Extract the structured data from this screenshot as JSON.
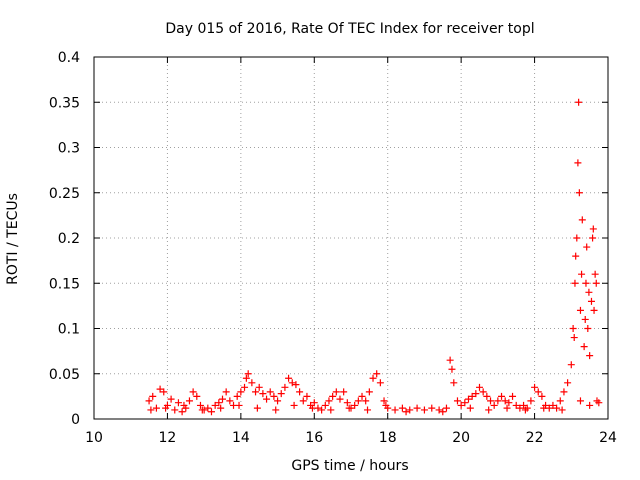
{
  "chart_data": {
    "type": "scatter",
    "title": "Day 015 of 2016, Rate Of TEC Index for receiver topl",
    "xlabel": "GPS time / hours",
    "ylabel": "ROTI / TECUs",
    "xlim": [
      10,
      24
    ],
    "ylim": [
      0,
      0.4
    ],
    "x_ticks": [
      10,
      12,
      14,
      16,
      18,
      20,
      22,
      24
    ],
    "x_tick_labels": [
      "10",
      "12",
      "14",
      "16",
      "18",
      "20",
      "22",
      "24"
    ],
    "y_ticks": [
      0,
      0.05,
      0.1,
      0.15,
      0.2,
      0.25,
      0.3,
      0.35,
      0.4
    ],
    "y_tick_labels": [
      "0",
      "0.05",
      "0.1",
      "0.15",
      "0.2",
      "0.25",
      "0.3",
      "0.35",
      "0.4"
    ],
    "grid": true,
    "marker": "+",
    "color": "#ff0000",
    "series": [
      {
        "name": "ROTI",
        "points": [
          [
            11.5,
            0.02
          ],
          [
            11.6,
            0.025
          ],
          [
            11.7,
            0.012
          ],
          [
            11.8,
            0.033
          ],
          [
            11.9,
            0.03
          ],
          [
            12.0,
            0.015
          ],
          [
            12.1,
            0.022
          ],
          [
            12.2,
            0.01
          ],
          [
            12.3,
            0.018
          ],
          [
            12.4,
            0.008
          ],
          [
            12.5,
            0.012
          ],
          [
            12.6,
            0.02
          ],
          [
            12.7,
            0.03
          ],
          [
            12.8,
            0.025
          ],
          [
            12.9,
            0.015
          ],
          [
            13.0,
            0.01
          ],
          [
            13.1,
            0.012
          ],
          [
            13.2,
            0.008
          ],
          [
            13.3,
            0.015
          ],
          [
            13.4,
            0.018
          ],
          [
            13.5,
            0.022
          ],
          [
            13.6,
            0.03
          ],
          [
            13.7,
            0.02
          ],
          [
            13.8,
            0.015
          ],
          [
            13.9,
            0.025
          ],
          [
            14.0,
            0.03
          ],
          [
            14.1,
            0.035
          ],
          [
            14.15,
            0.045
          ],
          [
            14.2,
            0.05
          ],
          [
            14.3,
            0.04
          ],
          [
            14.4,
            0.03
          ],
          [
            14.5,
            0.035
          ],
          [
            14.6,
            0.028
          ],
          [
            14.7,
            0.022
          ],
          [
            14.8,
            0.03
          ],
          [
            14.9,
            0.025
          ],
          [
            15.0,
            0.02
          ],
          [
            15.1,
            0.028
          ],
          [
            15.2,
            0.035
          ],
          [
            15.3,
            0.045
          ],
          [
            15.4,
            0.04
          ],
          [
            15.5,
            0.038
          ],
          [
            15.6,
            0.03
          ],
          [
            15.7,
            0.02
          ],
          [
            15.8,
            0.025
          ],
          [
            15.9,
            0.015
          ],
          [
            16.0,
            0.018
          ],
          [
            16.1,
            0.012
          ],
          [
            16.2,
            0.01
          ],
          [
            16.3,
            0.015
          ],
          [
            16.4,
            0.02
          ],
          [
            16.5,
            0.025
          ],
          [
            16.6,
            0.03
          ],
          [
            16.7,
            0.022
          ],
          [
            16.8,
            0.03
          ],
          [
            16.9,
            0.018
          ],
          [
            17.0,
            0.012
          ],
          [
            17.1,
            0.015
          ],
          [
            17.2,
            0.02
          ],
          [
            17.3,
            0.025
          ],
          [
            17.4,
            0.02
          ],
          [
            17.5,
            0.03
          ],
          [
            17.6,
            0.045
          ],
          [
            17.7,
            0.05
          ],
          [
            17.8,
            0.04
          ],
          [
            17.9,
            0.02
          ],
          [
            18.0,
            0.012
          ],
          [
            18.2,
            0.01
          ],
          [
            18.4,
            0.012
          ],
          [
            18.6,
            0.01
          ],
          [
            18.8,
            0.012
          ],
          [
            19.0,
            0.01
          ],
          [
            19.2,
            0.012
          ],
          [
            19.4,
            0.01
          ],
          [
            19.6,
            0.012
          ],
          [
            19.7,
            0.065
          ],
          [
            19.75,
            0.055
          ],
          [
            19.8,
            0.04
          ],
          [
            19.9,
            0.02
          ],
          [
            20.0,
            0.015
          ],
          [
            20.1,
            0.018
          ],
          [
            20.2,
            0.022
          ],
          [
            20.3,
            0.025
          ],
          [
            20.4,
            0.028
          ],
          [
            20.5,
            0.035
          ],
          [
            20.6,
            0.03
          ],
          [
            20.7,
            0.025
          ],
          [
            20.8,
            0.02
          ],
          [
            20.9,
            0.015
          ],
          [
            21.0,
            0.02
          ],
          [
            21.1,
            0.025
          ],
          [
            21.2,
            0.02
          ],
          [
            21.3,
            0.018
          ],
          [
            21.4,
            0.025
          ],
          [
            21.5,
            0.015
          ],
          [
            21.6,
            0.012
          ],
          [
            21.7,
            0.015
          ],
          [
            21.8,
            0.012
          ],
          [
            21.9,
            0.02
          ],
          [
            22.0,
            0.035
          ],
          [
            22.1,
            0.03
          ],
          [
            22.2,
            0.025
          ],
          [
            22.3,
            0.015
          ],
          [
            22.4,
            0.012
          ],
          [
            22.5,
            0.015
          ],
          [
            22.6,
            0.012
          ],
          [
            22.7,
            0.02
          ],
          [
            22.8,
            0.03
          ],
          [
            22.9,
            0.04
          ],
          [
            23.0,
            0.06
          ],
          [
            23.05,
            0.1
          ],
          [
            23.1,
            0.15
          ],
          [
            23.15,
            0.2
          ],
          [
            23.18,
            0.283
          ],
          [
            23.2,
            0.35
          ],
          [
            23.25,
            0.12
          ],
          [
            23.3,
            0.22
          ],
          [
            23.35,
            0.08
          ],
          [
            23.4,
            0.15
          ],
          [
            23.45,
            0.1
          ],
          [
            23.5,
            0.07
          ],
          [
            23.55,
            0.13
          ],
          [
            23.6,
            0.21
          ],
          [
            23.65,
            0.16
          ],
          [
            23.7,
            0.02
          ],
          [
            11.55,
            0.01
          ],
          [
            11.95,
            0.012
          ],
          [
            12.45,
            0.015
          ],
          [
            12.95,
            0.01
          ],
          [
            13.45,
            0.012
          ],
          [
            13.95,
            0.015
          ],
          [
            14.45,
            0.012
          ],
          [
            14.95,
            0.01
          ],
          [
            15.45,
            0.015
          ],
          [
            15.95,
            0.012
          ],
          [
            16.45,
            0.01
          ],
          [
            16.95,
            0.012
          ],
          [
            17.45,
            0.01
          ],
          [
            17.95,
            0.015
          ],
          [
            18.5,
            0.008
          ],
          [
            19.5,
            0.008
          ],
          [
            20.25,
            0.012
          ],
          [
            20.75,
            0.01
          ],
          [
            21.25,
            0.012
          ],
          [
            21.75,
            0.01
          ],
          [
            22.25,
            0.012
          ],
          [
            22.75,
            0.01
          ],
          [
            23.25,
            0.02
          ],
          [
            23.5,
            0.015
          ],
          [
            23.75,
            0.018
          ],
          [
            23.12,
            0.18
          ],
          [
            23.22,
            0.25
          ],
          [
            23.28,
            0.16
          ],
          [
            23.42,
            0.19
          ],
          [
            23.48,
            0.14
          ],
          [
            23.58,
            0.2
          ],
          [
            23.62,
            0.12
          ],
          [
            23.68,
            0.15
          ],
          [
            23.38,
            0.11
          ],
          [
            23.08,
            0.09
          ]
        ]
      }
    ]
  }
}
